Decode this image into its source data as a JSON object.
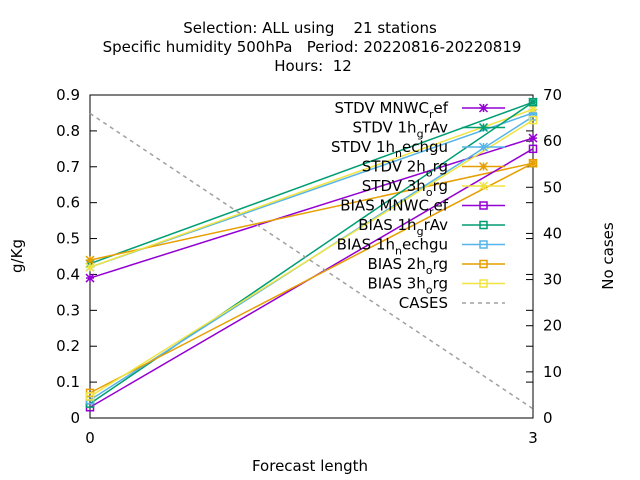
{
  "chart_data": {
    "type": "line",
    "title_lines": [
      "Selection: ALL using    21 stations",
      "Specific humidity 500hPa   Period: 20220816-20220819",
      "Hours:  12"
    ],
    "xlabel": "Forecast length",
    "ylabel": "g/Kg",
    "y2label": "No cases",
    "x": [
      0,
      3
    ],
    "xlim": [
      0,
      3
    ],
    "ylim": [
      0,
      0.9
    ],
    "y2lim": [
      0,
      70
    ],
    "xticks": [
      "0",
      "3"
    ],
    "yticks": [
      "0",
      "0.1",
      "0.2",
      "0.3",
      "0.4",
      "0.5",
      "0.6",
      "0.7",
      "0.8",
      "0.9"
    ],
    "y2ticks": [
      "0",
      "10",
      "20",
      "30",
      "40",
      "50",
      "60",
      "70"
    ],
    "legend_position": "top-right",
    "series": [
      {
        "name": "STDV MNWC_ref",
        "legend": [
          "STDV MNWC",
          "r",
          "ef"
        ],
        "color": "#9400d3",
        "marker": "star",
        "axis": "y",
        "values": [
          0.39,
          0.78
        ]
      },
      {
        "name": "STDV 1h_grAv",
        "legend": [
          "STDV 1h",
          "g",
          "rAv"
        ],
        "color": "#009e73",
        "marker": "star",
        "axis": "y",
        "values": [
          0.43,
          0.88
        ]
      },
      {
        "name": "STDV 1h_nechgu",
        "legend": [
          "STDV 1h",
          "n",
          "echgu"
        ],
        "color": "#56b4e9",
        "marker": "star",
        "axis": "y",
        "values": [
          0.42,
          0.85
        ]
      },
      {
        "name": "STDV 2h_org",
        "legend": [
          "STDV 2h",
          "o",
          "rg"
        ],
        "color": "#e69f00",
        "marker": "star",
        "axis": "y",
        "values": [
          0.44,
          0.71
        ]
      },
      {
        "name": "STDV 3h_org",
        "legend": [
          "STDV 3h",
          "o",
          "rg"
        ],
        "color": "#f0e442",
        "marker": "star",
        "axis": "y",
        "values": [
          0.42,
          0.86
        ]
      },
      {
        "name": "BIAS MNWC_ref",
        "legend": [
          "BIAS MNWC",
          "r",
          "ef"
        ],
        "color": "#9400d3",
        "marker": "square",
        "axis": "y",
        "values": [
          0.03,
          0.75
        ]
      },
      {
        "name": "BIAS 1h_grAv",
        "legend": [
          "BIAS 1h",
          "g",
          "rAv"
        ],
        "color": "#009e73",
        "marker": "square",
        "axis": "y",
        "values": [
          0.04,
          0.88
        ]
      },
      {
        "name": "BIAS 1h_nechgu",
        "legend": [
          "BIAS 1h",
          "n",
          "echgu"
        ],
        "color": "#56b4e9",
        "marker": "square",
        "axis": "y",
        "values": [
          0.05,
          0.84
        ]
      },
      {
        "name": "BIAS 2h_org",
        "legend": [
          "BIAS 2h",
          "o",
          "rg"
        ],
        "color": "#e69f00",
        "marker": "square",
        "axis": "y",
        "values": [
          0.07,
          0.71
        ]
      },
      {
        "name": "BIAS 3h_org",
        "legend": [
          "BIAS 3h",
          "o",
          "rg"
        ],
        "color": "#f0e442",
        "marker": "square",
        "axis": "y",
        "values": [
          0.06,
          0.83
        ]
      },
      {
        "name": "CASES",
        "legend": [
          "CASES",
          "",
          ""
        ],
        "color": "#a0a0a0",
        "marker": "none",
        "dashed": true,
        "axis": "y2",
        "values": [
          66,
          2
        ]
      }
    ]
  }
}
